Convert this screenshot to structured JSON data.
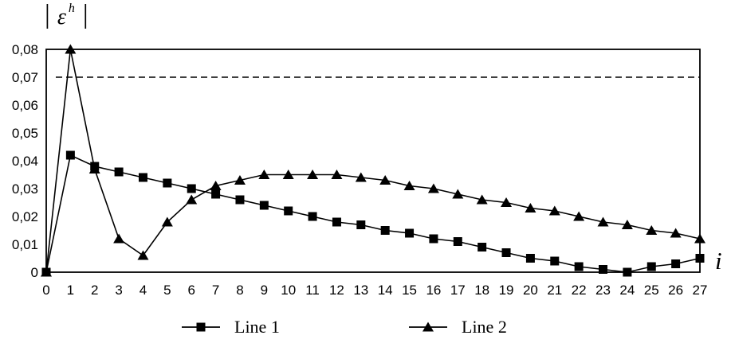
{
  "chart_data": {
    "type": "line",
    "title": "",
    "x": [
      0,
      1,
      2,
      3,
      4,
      5,
      6,
      7,
      8,
      9,
      10,
      11,
      12,
      13,
      14,
      15,
      16,
      17,
      18,
      19,
      20,
      21,
      22,
      23,
      24,
      25,
      26,
      27
    ],
    "series": [
      {
        "name": "Line 1",
        "marker": "square",
        "values": [
          0,
          0.042,
          0.038,
          0.036,
          0.034,
          0.032,
          0.03,
          0.028,
          0.026,
          0.024,
          0.022,
          0.02,
          0.018,
          0.017,
          0.015,
          0.014,
          0.012,
          0.011,
          0.009,
          0.007,
          0.005,
          0.004,
          0.002,
          0.001,
          0.0,
          0.002,
          0.003,
          0.005
        ]
      },
      {
        "name": "Line 2",
        "marker": "triangle",
        "values": [
          0,
          0.08,
          0.037,
          0.012,
          0.006,
          0.018,
          0.026,
          0.031,
          0.033,
          0.035,
          0.035,
          0.035,
          0.035,
          0.034,
          0.033,
          0.031,
          0.03,
          0.028,
          0.026,
          0.025,
          0.023,
          0.022,
          0.02,
          0.018,
          0.017,
          0.015,
          0.014,
          0.012
        ]
      }
    ],
    "reference_line": {
      "value": 0.07,
      "style": "dashed"
    },
    "xlabel": "i",
    "ylabel": "|eps^h|",
    "ylim": [
      0,
      0.08
    ],
    "xlim": [
      0,
      27
    ],
    "y_ticks": [
      0,
      0.01,
      0.02,
      0.03,
      0.04,
      0.05,
      0.06,
      0.07,
      0.08
    ],
    "y_tick_labels": [
      "0",
      "0,01",
      "0,02",
      "0,03",
      "0,04",
      "0,05",
      "0,06",
      "0,07",
      "0,08"
    ],
    "x_tick_labels": [
      "0",
      "1",
      "2",
      "3",
      "4",
      "5",
      "6",
      "7",
      "8",
      "9",
      "10",
      "11",
      "12",
      "13",
      "14",
      "15",
      "16",
      "17",
      "18",
      "19",
      "20",
      "21",
      "22",
      "23",
      "24",
      "25",
      "26",
      "27"
    ],
    "grid": false,
    "legend_position": "bottom"
  },
  "axes": {
    "y_title_open": "|",
    "y_title_symbol": "ε",
    "y_title_superscript": "h",
    "y_title_close": "|",
    "x_title": "i"
  },
  "legend": {
    "items": [
      {
        "label": "Line 1",
        "marker": "square"
      },
      {
        "label": "Line 2",
        "marker": "triangle"
      }
    ]
  },
  "colors": {
    "line": "#000000",
    "background": "#ffffff",
    "text": "#000000"
  }
}
